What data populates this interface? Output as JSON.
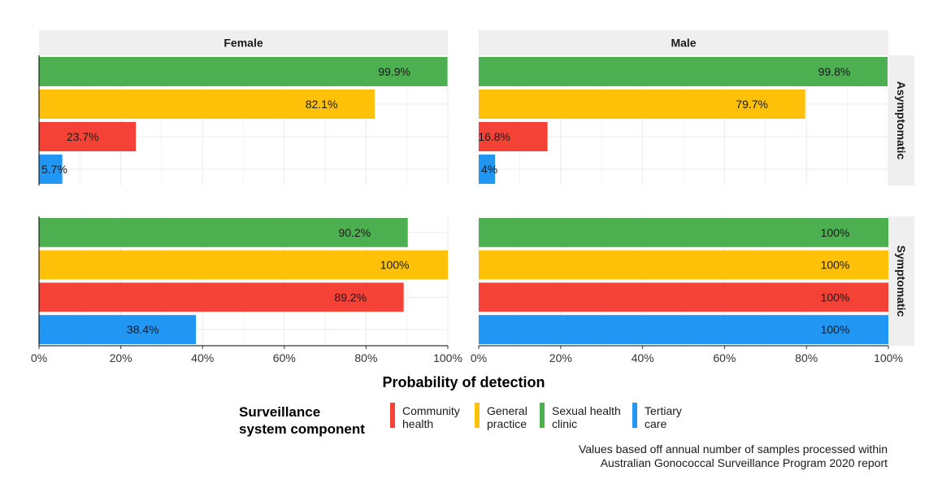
{
  "chart_data": {
    "type": "bar",
    "orientation": "horizontal",
    "xlabel": "Probability of detection",
    "xlim": [
      0,
      1
    ],
    "x_ticks": [
      "0%",
      "20%",
      "40%",
      "60%",
      "80%",
      "100%"
    ],
    "columns": [
      "Female",
      "Male"
    ],
    "rows": [
      "Asymptomatic",
      "Symptomatic"
    ],
    "categories": [
      "Sexual health clinic",
      "General practice",
      "Community health",
      "Tertiary care"
    ],
    "panels": [
      {
        "column": "Female",
        "row": "Asymptomatic",
        "values": [
          0.999,
          0.821,
          0.237,
          0.057
        ],
        "labels": [
          "99.9%",
          "82.1%",
          "23.7%",
          "5.7%"
        ]
      },
      {
        "column": "Male",
        "row": "Asymptomatic",
        "values": [
          0.998,
          0.797,
          0.168,
          0.04
        ],
        "labels": [
          "99.8%",
          "79.7%",
          "16.8%",
          "4%"
        ]
      },
      {
        "column": "Female",
        "row": "Symptomatic",
        "values": [
          0.902,
          1.0,
          0.892,
          0.384
        ],
        "labels": [
          "90.2%",
          "100%",
          "89.2%",
          "38.4%"
        ]
      },
      {
        "column": "Male",
        "row": "Symptomatic",
        "values": [
          1.0,
          1.0,
          1.0,
          1.0
        ],
        "labels": [
          "100%",
          "100%",
          "100%",
          "100%"
        ]
      }
    ],
    "grid": true,
    "legend": {
      "title": [
        "Surveillance",
        "system component"
      ],
      "position": "bottom",
      "items": [
        {
          "label": [
            "Community",
            "health"
          ],
          "color": "#f44336"
        },
        {
          "label": [
            "General",
            "practice"
          ],
          "color": "#ffc107"
        },
        {
          "label": [
            "Sexual health",
            "clinic"
          ],
          "color": "#4caf50"
        },
        {
          "label": [
            "Tertiary",
            "care"
          ],
          "color": "#2196f3"
        }
      ]
    },
    "caption": [
      "Values based off annual number of samples processed within",
      "Australian Gonococcal Surveillance Program 2020 report"
    ],
    "colors": {
      "Sexual health clinic": "#4caf50",
      "General practice": "#ffc107",
      "Community health": "#f44336",
      "Tertiary care": "#2196f3",
      "strip": "#efefef",
      "grid": "#ebebeb",
      "axis": "#000000"
    }
  }
}
